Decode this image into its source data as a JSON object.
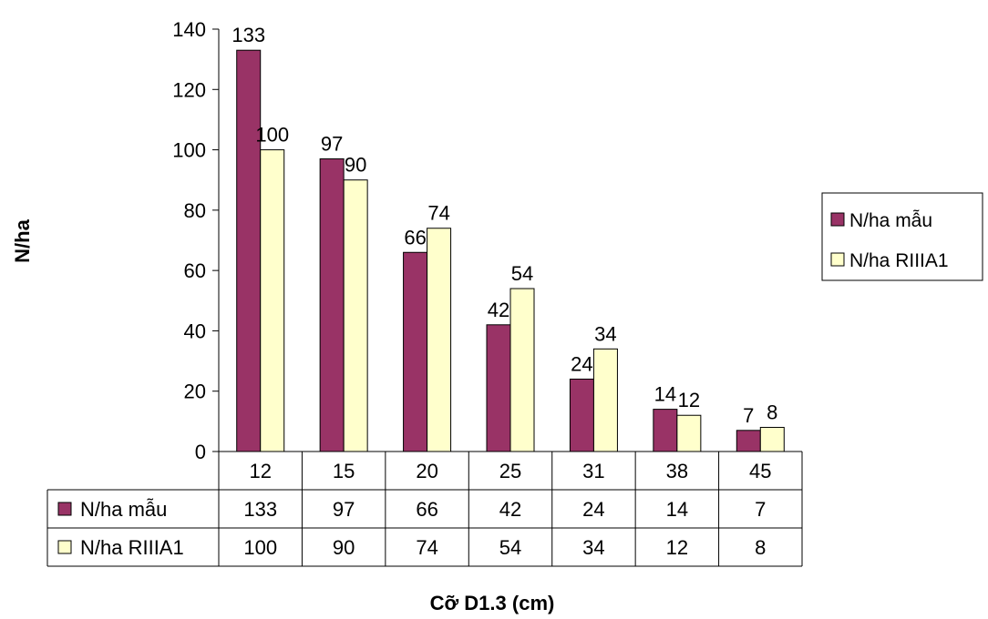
{
  "chart_data": {
    "type": "bar",
    "categories": [
      "12",
      "15",
      "20",
      "25",
      "31",
      "38",
      "45"
    ],
    "series": [
      {
        "name": "N/ha mẫu",
        "values": [
          133,
          97,
          66,
          42,
          24,
          14,
          7
        ],
        "color": "#993366"
      },
      {
        "name": "N/ha RIIIA1",
        "values": [
          100,
          90,
          74,
          54,
          34,
          12,
          8
        ],
        "color": "#ffffcc"
      }
    ],
    "xlabel": "Cỡ D1.3 (cm)",
    "ylabel": "N/ha",
    "ylim": [
      0,
      140
    ],
    "yticks": [
      0,
      20,
      40,
      60,
      80,
      100,
      120,
      140
    ],
    "grid": false,
    "legend": "right",
    "data_table": true
  }
}
